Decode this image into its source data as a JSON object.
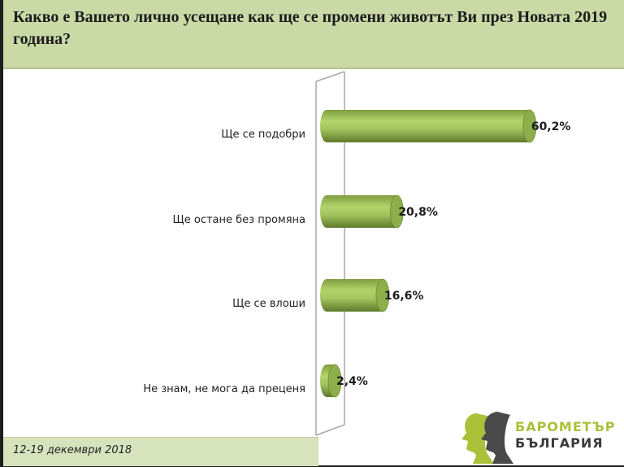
{
  "title": "Какво е Вашето лично усещане как ще се промени животът Ви през Новата 2019 година?",
  "footer_date": "12-19 декември 2018",
  "logo": {
    "line1": "БАРОМЕТЪР",
    "line2": "БЪЛГАРИЯ"
  },
  "colors": {
    "header_bg": "#cad9a6",
    "bar": "#9bbb59",
    "footer_bg": "#d7e3bd"
  },
  "chart_data": {
    "type": "bar",
    "orientation": "horizontal",
    "style": "3d-cylinder",
    "categories": [
      "Ще се подобри",
      "Ще остане без промяна",
      "Ще се влоши",
      "Не знам, не мога да преценя"
    ],
    "values": [
      60.2,
      20.8,
      16.6,
      2.4
    ],
    "data_labels": [
      "60,2%",
      "20,8%",
      "16,6%",
      "2,4%"
    ],
    "unit": "%",
    "grid": false,
    "legend": "none"
  }
}
